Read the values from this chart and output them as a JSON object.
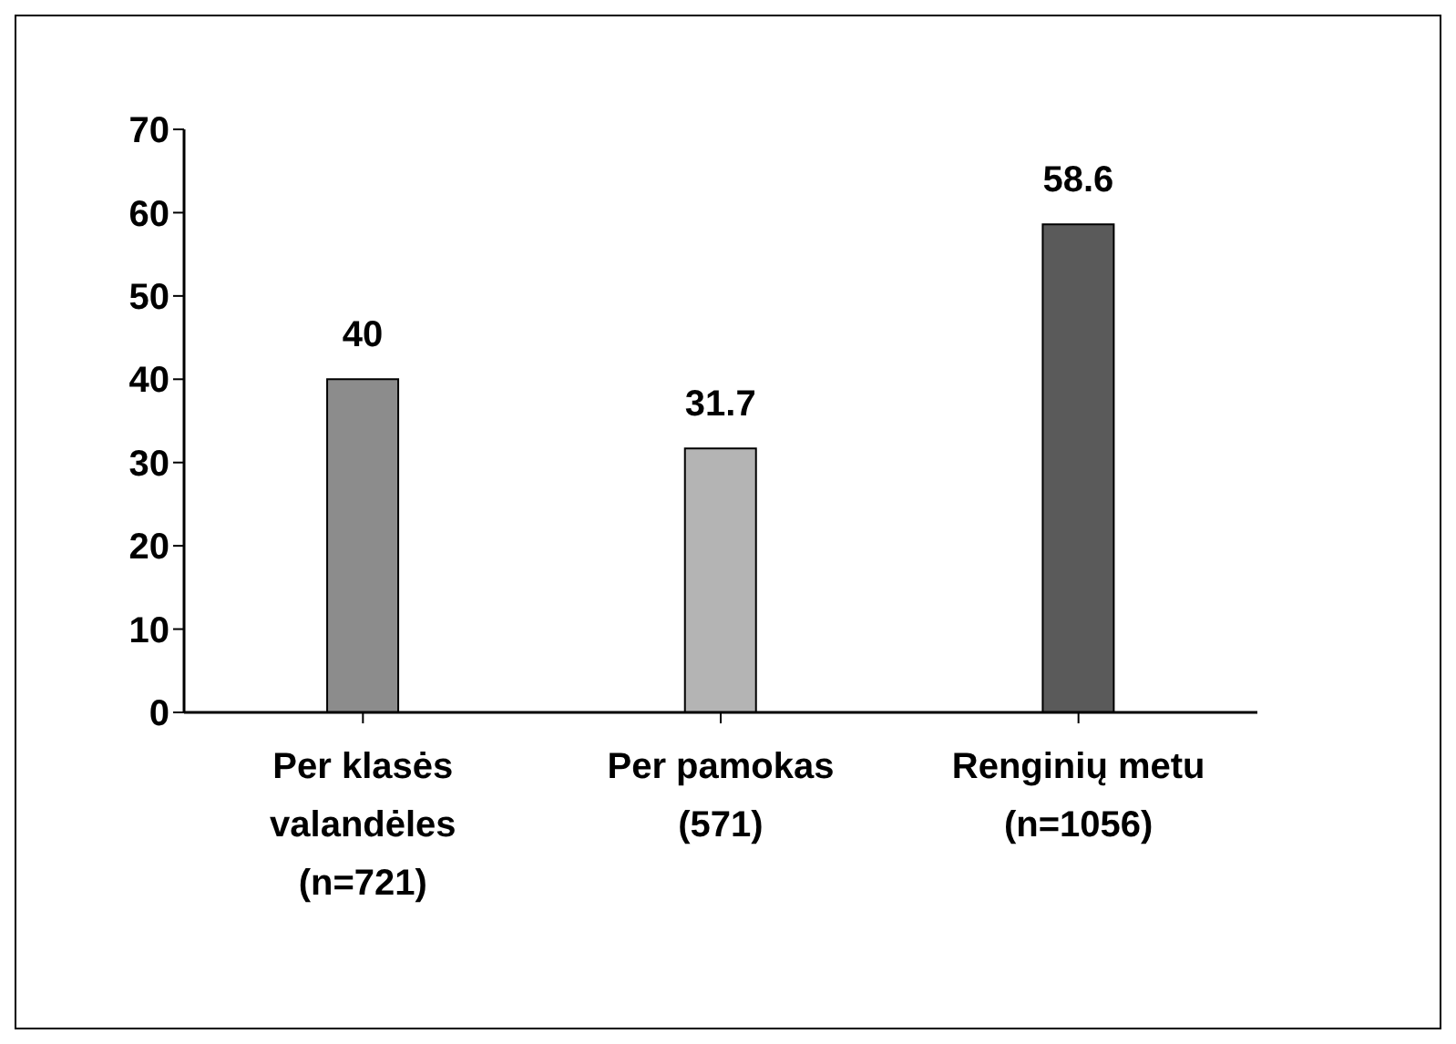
{
  "chart_data": {
    "type": "bar",
    "categories": [
      "Per klasės valandėles (n=721)",
      "Per pamokas (571)",
      "Renginių metu (n=1056)"
    ],
    "values": [
      40,
      31.7,
      58.6
    ],
    "colors": [
      "#8c8c8c",
      "#b4b4b4",
      "#5a5a5a"
    ],
    "ylim": [
      0,
      70
    ],
    "yticks": [
      0,
      10,
      20,
      30,
      40,
      50,
      60,
      70
    ],
    "grid": false,
    "legend": false,
    "data_labels": true
  }
}
